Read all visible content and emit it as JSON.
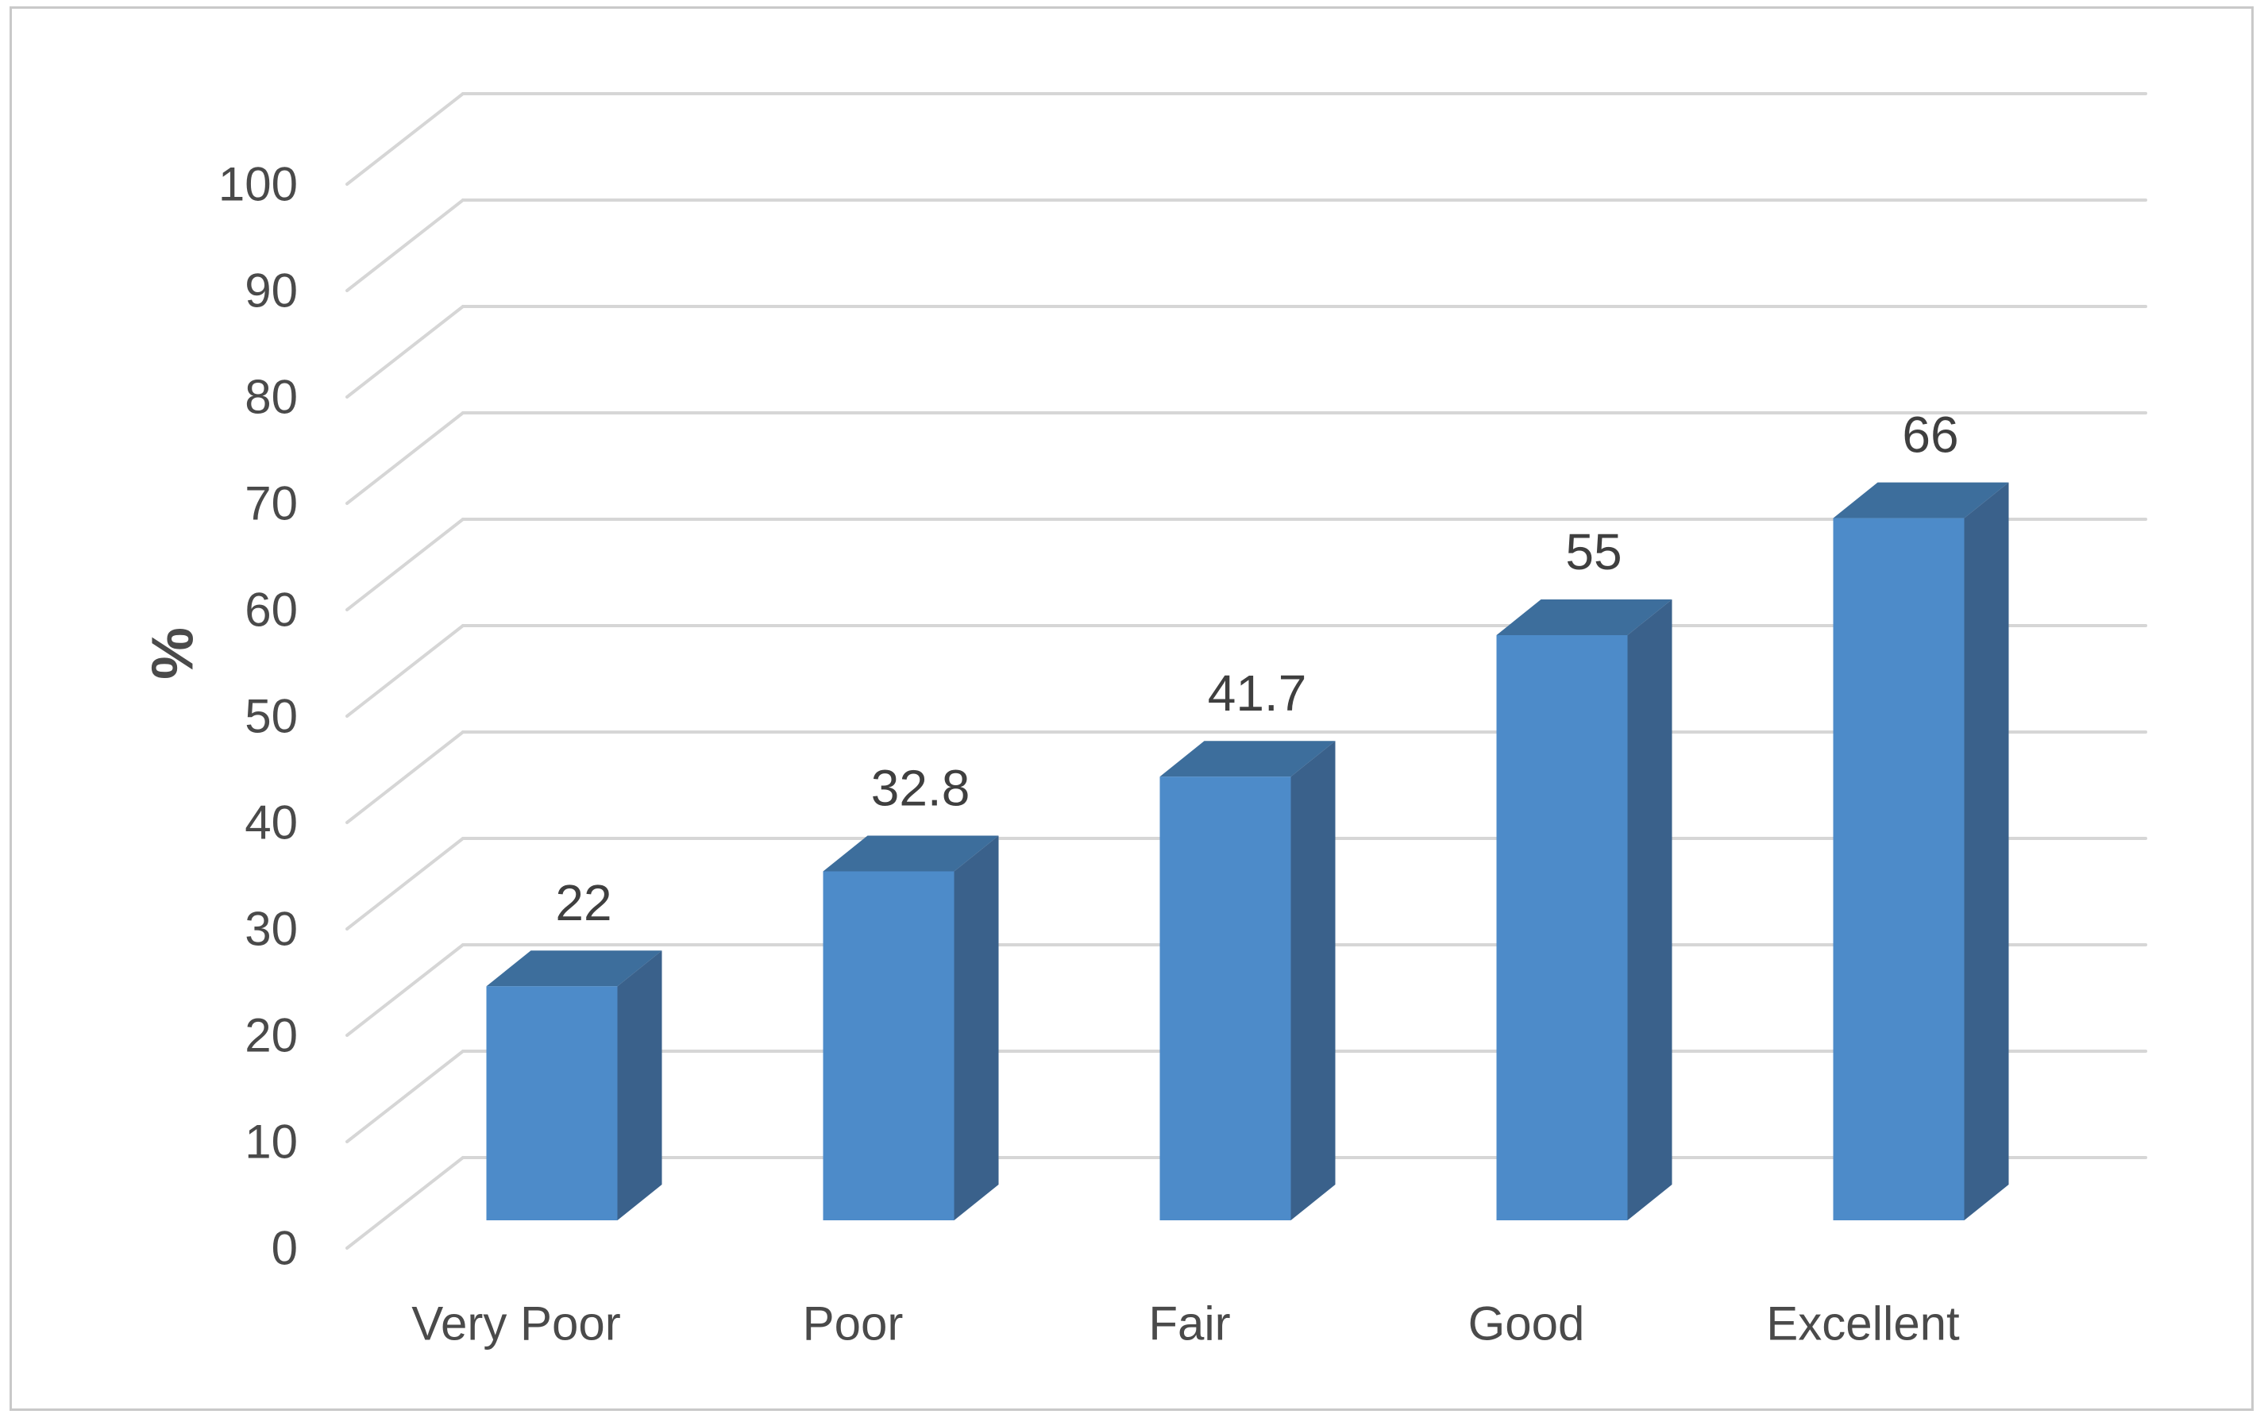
{
  "chart_data": {
    "type": "bar",
    "subtype": "3d-column",
    "title": "",
    "categories": [
      "Very Poor",
      "Poor",
      "Fair",
      "Good",
      "Excellent"
    ],
    "values": [
      22,
      32.8,
      41.7,
      55,
      66
    ],
    "data_labels": [
      "22",
      "32.8",
      "41.7",
      "55",
      "66"
    ],
    "xlabel": "",
    "ylabel": "%",
    "ylim": [
      0,
      100
    ],
    "ytick_step": 10,
    "yticks": [
      "0",
      "10",
      "20",
      "30",
      "40",
      "50",
      "60",
      "70",
      "80",
      "90",
      "100"
    ],
    "grid": true,
    "legend_position": "none",
    "colors": {
      "bar_front": "#4D8BC9",
      "bar_top": "#3D6E9C",
      "bar_side": "#3A618B",
      "gridline": "#D6D6D6",
      "tick_text": "#4A4A4A",
      "category_text": "#4A4A4A",
      "data_label_text": "#3F3F3F",
      "axis_title_text": "#4A4A4A",
      "border": "#C9C9C9",
      "background": "#FFFFFF"
    }
  }
}
